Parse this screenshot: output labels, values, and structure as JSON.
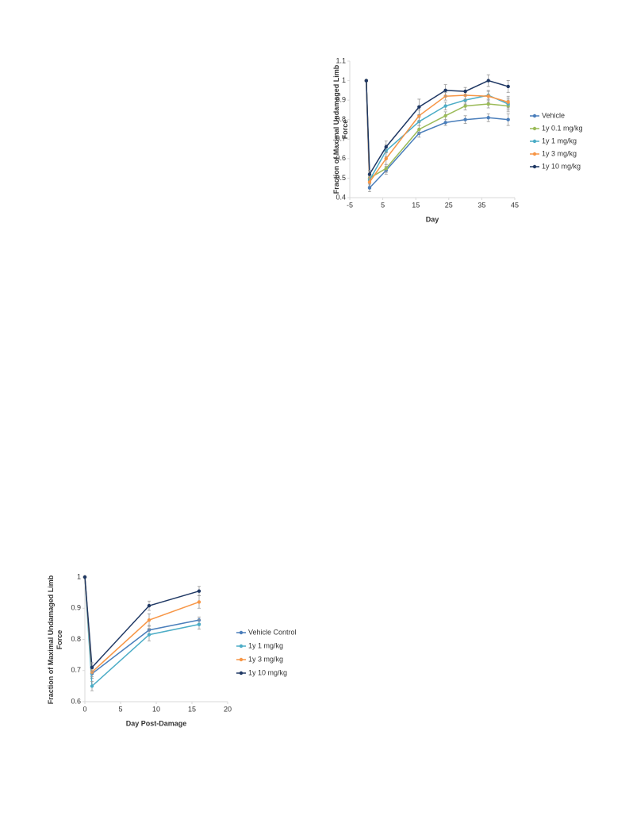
{
  "chart_data": [
    {
      "type": "line",
      "x_label": "Day",
      "y_label": "Fraction of Maximal Undamaged Limb Force",
      "x": [
        0,
        1,
        6,
        16,
        24,
        30,
        37,
        43
      ],
      "xlim": [
        -5,
        45
      ],
      "xticks": [
        -5,
        5,
        15,
        25,
        35,
        45
      ],
      "ylim": [
        0.4,
        1.1
      ],
      "yticks": [
        0.4,
        0.5,
        0.6,
        0.7,
        0.8,
        0.9,
        1,
        1.1
      ],
      "legend": "right",
      "series": [
        {
          "name": "Vehicle",
          "color": "#4a7ebb",
          "values": [
            1,
            0.45,
            0.54,
            0.73,
            0.785,
            0.8,
            0.81,
            0.8
          ],
          "errors": [
            0,
            0.02,
            0.02,
            0.02,
            0.015,
            0.02,
            0.02,
            0.03
          ]
        },
        {
          "name": "1y 0.1 mg/kg",
          "color": "#9bbb59",
          "values": [
            1,
            0.5,
            0.55,
            0.75,
            0.82,
            0.87,
            0.88,
            0.87
          ],
          "errors": [
            0,
            0.02,
            0.02,
            0.02,
            0.02,
            0.02,
            0.02,
            0.03
          ]
        },
        {
          "name": "1y 1 mg/kg",
          "color": "#4bacc6",
          "values": [
            1,
            0.49,
            0.64,
            0.79,
            0.87,
            0.9,
            0.925,
            0.88
          ],
          "errors": [
            0,
            0.02,
            0.03,
            0.02,
            0.02,
            0.02,
            0.02,
            0.03
          ]
        },
        {
          "name": "1y 3 mg/kg",
          "color": "#f79646",
          "values": [
            1,
            0.48,
            0.6,
            0.82,
            0.92,
            0.925,
            0.92,
            0.89
          ],
          "errors": [
            0,
            0.02,
            0.03,
            0.03,
            0.02,
            0.02,
            0.03,
            0.03
          ]
        },
        {
          "name": "1y 10 mg/kg",
          "color": "#1f3864",
          "values": [
            1,
            0.52,
            0.66,
            0.865,
            0.95,
            0.945,
            1,
            0.97
          ],
          "errors": [
            0,
            0.02,
            0.03,
            0.04,
            0.03,
            0.02,
            0.03,
            0.03
          ]
        }
      ]
    },
    {
      "type": "line",
      "x_label": "Day Post-Damage",
      "y_label": "Fraction of Maximal Undamaged Limb Force",
      "x": [
        0,
        1,
        9,
        16
      ],
      "xlim": [
        0,
        20
      ],
      "xticks": [
        0,
        5,
        10,
        15,
        20
      ],
      "ylim": [
        0.6,
        1
      ],
      "yticks": [
        0.6,
        0.7,
        0.8,
        0.9,
        1
      ],
      "legend": "right",
      "series": [
        {
          "name": "Vehicle Control",
          "color": "#4a7ebb",
          "values": [
            1,
            0.69,
            0.83,
            0.862
          ],
          "errors": [
            0,
            0.015,
            0.015,
            0.01
          ]
        },
        {
          "name": "1y 1 mg/kg",
          "color": "#4bacc6",
          "values": [
            1,
            0.65,
            0.815,
            0.848
          ],
          "errors": [
            0,
            0.015,
            0.02,
            0.015
          ]
        },
        {
          "name": "1y 3 mg/kg",
          "color": "#f79646",
          "values": [
            1,
            0.695,
            0.862,
            0.92
          ],
          "errors": [
            0,
            0.015,
            0.02,
            0.02
          ]
        },
        {
          "name": "1y 10 mg/kg",
          "color": "#1f3864",
          "values": [
            1,
            0.71,
            0.908,
            0.955
          ],
          "errors": [
            0,
            0.015,
            0.015,
            0.015
          ]
        }
      ]
    }
  ]
}
